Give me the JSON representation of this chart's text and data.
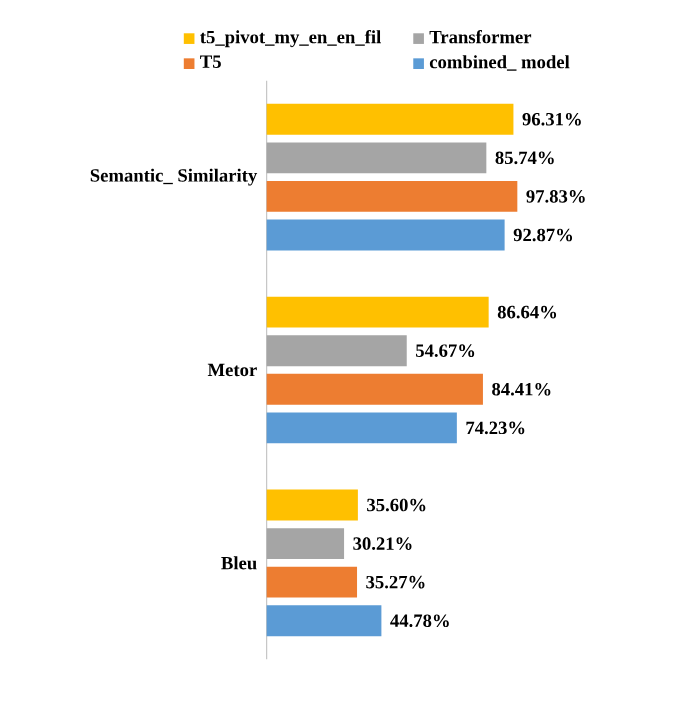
{
  "chart_data": {
    "type": "bar",
    "orientation": "horizontal",
    "categories": [
      "Semantic_ Similarity",
      "Metor",
      "Bleu"
    ],
    "legend": "top",
    "series": [
      {
        "name": "t5_pivot_my_en_en_fil",
        "color": "#ffc000",
        "values": [
          96.31,
          86.64,
          35.6
        ],
        "value_labels": [
          "96.31%",
          "86.64%",
          "35.60%"
        ]
      },
      {
        "name": "Transformer",
        "color": "#a5a5a5",
        "values": [
          85.74,
          54.67,
          30.21
        ],
        "value_labels": [
          "85.74%",
          "54.67%",
          "30.21%"
        ]
      },
      {
        "name": "T5",
        "color": "#ed7d31",
        "values": [
          97.83,
          84.41,
          35.27
        ],
        "value_labels": [
          "97.83%",
          "84.41%",
          "35.27%"
        ]
      },
      {
        "name": "combined_ model",
        "color": "#5b9bd5",
        "values": [
          92.87,
          74.23,
          44.78
        ],
        "value_labels": [
          "92.87%",
          "74.23%",
          "44.78%"
        ]
      }
    ]
  }
}
